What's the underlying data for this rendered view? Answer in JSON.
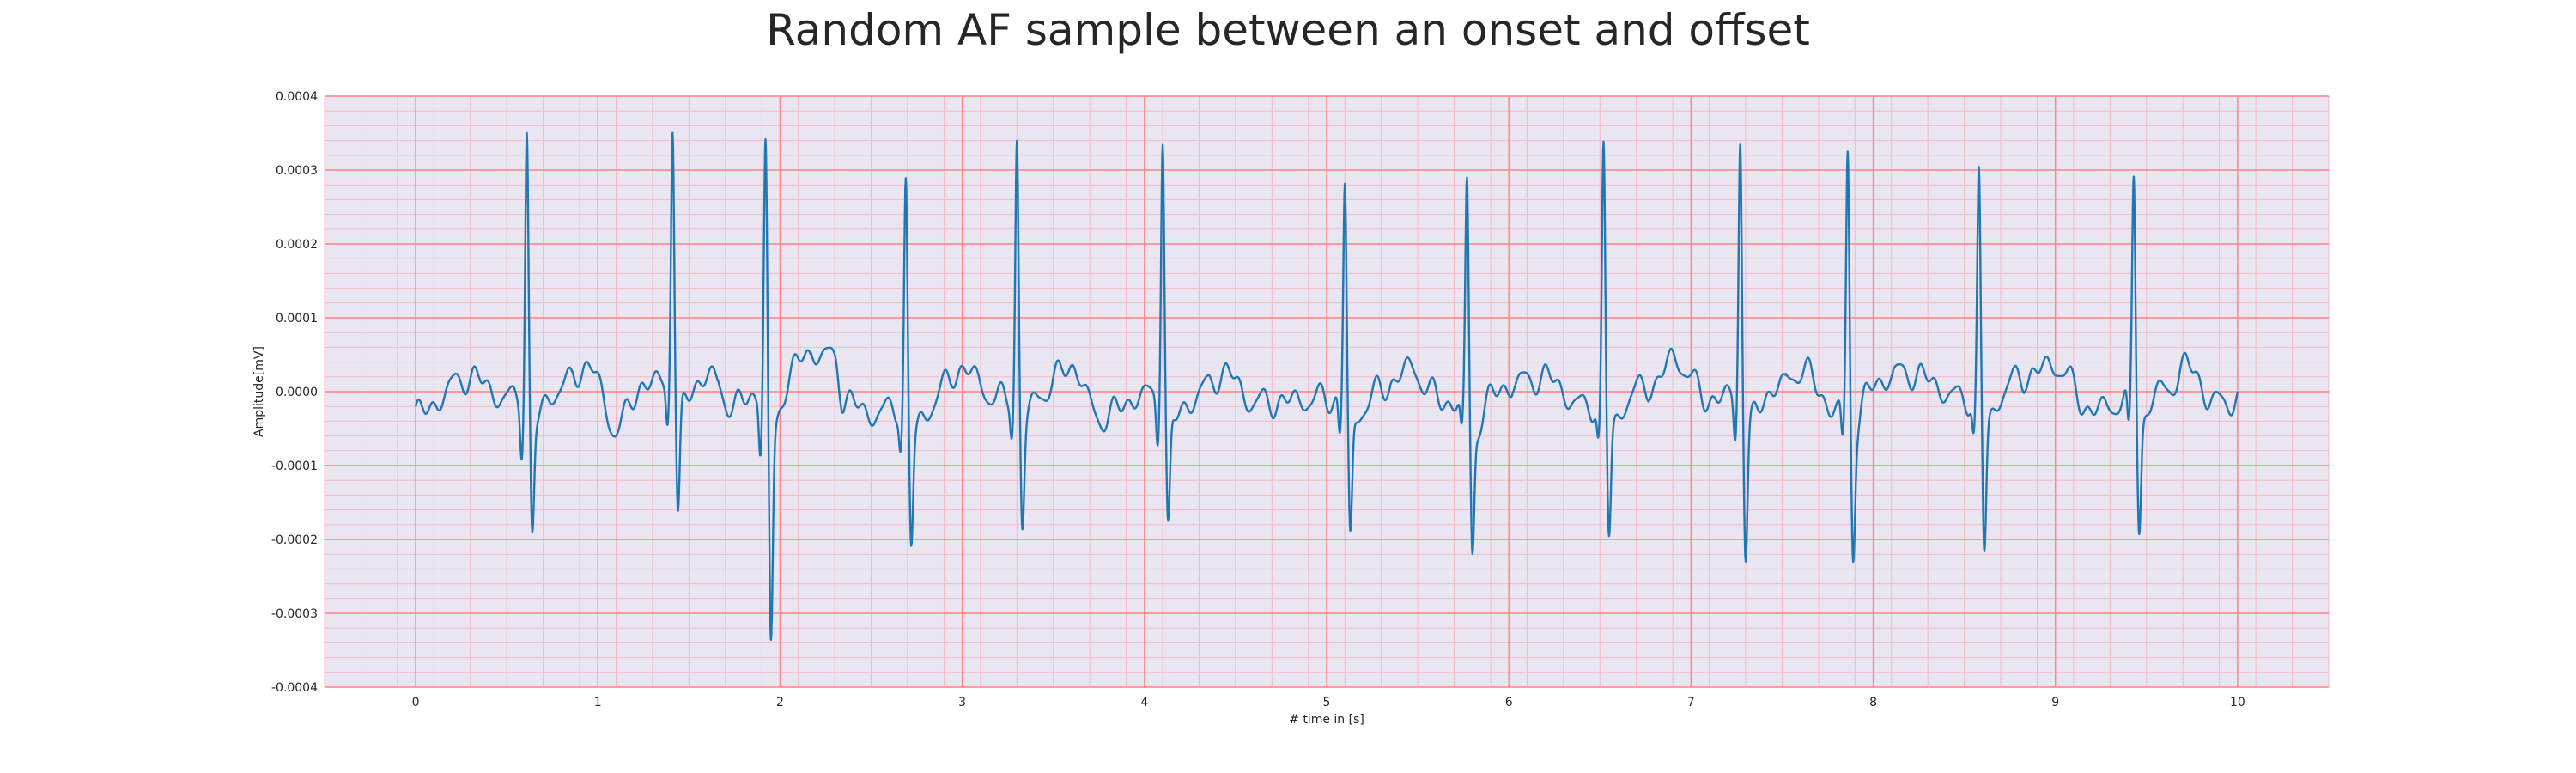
{
  "chart_data": {
    "type": "line",
    "title": "Random AF sample between an onset and offset",
    "xlabel": "# time in [s]",
    "ylabel": "Amplitude[mV]",
    "xlim": [
      -0.5,
      10.5
    ],
    "ylim": [
      -0.0004,
      0.0004
    ],
    "x_ticks": [
      0,
      1,
      2,
      3,
      4,
      5,
      6,
      7,
      8,
      9,
      10
    ],
    "x_tick_labels": [
      "0",
      "1",
      "2",
      "3",
      "4",
      "5",
      "6",
      "7",
      "8",
      "9",
      "10"
    ],
    "y_ticks": [
      -0.0004,
      -0.0003,
      -0.0002,
      -0.0001,
      0.0,
      0.0001,
      0.0002,
      0.0003,
      0.0004
    ],
    "y_tick_labels": [
      "-0.0004",
      "-0.0003",
      "-0.0002",
      "-0.0001",
      "0.0000",
      "0.0001",
      "0.0002",
      "0.0003",
      "0.0004"
    ],
    "grid": "major and minor (ECG paper style)",
    "background_color": "#e9e6f1",
    "major_grid_color": "#ff8080",
    "minor_grid_color": "#f4b8c8",
    "line_color": "#1f77b4",
    "duration_s": 10,
    "baseline_wander": [
      [
        0,
        -3e-05
      ],
      [
        0.3,
        2e-05
      ],
      [
        0.5,
        -1e-05
      ],
      [
        0.8,
        1e-05
      ],
      [
        0.95,
        3.5e-05
      ],
      [
        1.1,
        -5e-05
      ],
      [
        1.25,
        1e-05
      ],
      [
        1.6,
        2.5e-05
      ],
      [
        1.75,
        -2e-05
      ],
      [
        1.85,
        -5e-06
      ],
      [
        2.05,
        4.5e-05
      ],
      [
        2.15,
        5.5e-05
      ],
      [
        2.3,
        4.5e-05
      ],
      [
        2.35,
        -1e-05
      ],
      [
        2.5,
        -3e-05
      ],
      [
        2.8,
        -1e-05
      ],
      [
        3.0,
        3e-05
      ],
      [
        3.2,
        -1e-05
      ],
      [
        3.45,
        1e-05
      ],
      [
        3.6,
        3.5e-05
      ],
      [
        3.75,
        -3.5e-05
      ],
      [
        4.0,
        -5e-06
      ],
      [
        4.25,
        -5e-06
      ],
      [
        4.45,
        2.5e-05
      ],
      [
        4.6,
        -1.5e-05
      ],
      [
        5.0,
        -1e-05
      ],
      [
        5.3,
        5e-06
      ],
      [
        5.45,
        3e-05
      ],
      [
        5.65,
        -1.5e-05
      ],
      [
        6.0,
        1e-05
      ],
      [
        6.2,
        2e-05
      ],
      [
        6.4,
        -2e-05
      ],
      [
        6.8,
        1e-05
      ],
      [
        6.9,
        4.5e-05
      ],
      [
        7.1,
        -1e-05
      ],
      [
        7.5,
        1e-05
      ],
      [
        7.6,
        3e-05
      ],
      [
        7.8,
        -2.5e-05
      ],
      [
        8.0,
        2e-05
      ],
      [
        8.2,
        2.5e-05
      ],
      [
        8.5,
        -1e-05
      ],
      [
        8.8,
        2e-05
      ],
      [
        9.0,
        3.5e-05
      ],
      [
        9.2,
        -2.5e-05
      ],
      [
        9.6,
        1e-05
      ],
      [
        9.75,
        3.5e-05
      ],
      [
        9.85,
        -1.5e-05
      ],
      [
        10.0,
        -1e-05
      ]
    ],
    "beats": [
      {
        "t": 0.61,
        "r": 0.000368,
        "s": -0.000198,
        "q": -6.5e-05
      },
      {
        "t": 1.41,
        "r": 0.00036,
        "s": -0.00019,
        "q": -5e-05
      },
      {
        "t": 1.92,
        "r": 0.00034,
        "s": -0.00037,
        "q": -7.5e-05
      },
      {
        "t": 2.69,
        "r": 0.000307,
        "s": -0.000195,
        "q": -5e-05
      },
      {
        "t": 3.3,
        "r": 0.000352,
        "s": -0.00018,
        "q": -4.5e-05
      },
      {
        "t": 4.1,
        "r": 0.000368,
        "s": -0.000185,
        "q": -5.5e-05
      },
      {
        "t": 5.1,
        "r": 0.000302,
        "s": -0.0002,
        "q": -5e-05
      },
      {
        "t": 5.77,
        "r": 0.000298,
        "s": -0.000215,
        "q": -4.5e-05
      },
      {
        "t": 6.52,
        "r": 0.000355,
        "s": -0.000185,
        "q": -5e-05
      },
      {
        "t": 7.27,
        "r": 0.000362,
        "s": -0.000225,
        "q": -5.5e-05
      },
      {
        "t": 7.86,
        "r": 0.00035,
        "s": -0.000208,
        "q": -5e-05
      },
      {
        "t": 8.58,
        "r": 0.000312,
        "s": -0.000215,
        "q": -5e-05
      },
      {
        "t": 9.43,
        "r": 0.00031,
        "s": -0.000185,
        "q": -5.5e-05
      }
    ]
  }
}
